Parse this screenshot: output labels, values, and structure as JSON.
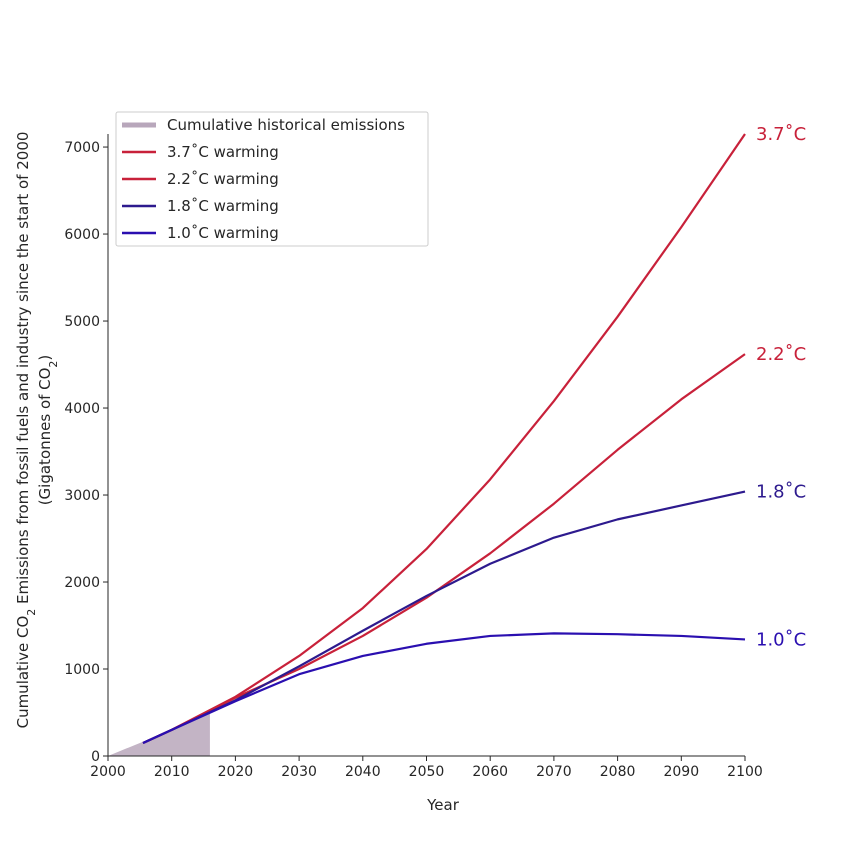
{
  "chart_data": {
    "type": "line",
    "xlabel": "Year",
    "ylabel_line1": "Cumulative CO",
    "ylabel_line1_sub": "2",
    "ylabel_line1_rest": " Emissions from fossil fuels and industry since the start of 2000",
    "ylabel_line2": "(Gigatonnes of CO",
    "ylabel_line2_sub": "2",
    "ylabel_line2_rest": ")",
    "xlim": [
      2000,
      2100
    ],
    "ylim": [
      0,
      7150
    ],
    "x_ticks": [
      2000,
      2010,
      2020,
      2030,
      2040,
      2050,
      2060,
      2070,
      2080,
      2090,
      2100
    ],
    "y_ticks": [
      0,
      1000,
      2000,
      3000,
      4000,
      5000,
      6000,
      7000
    ],
    "grid": false,
    "legend_position": "top-left",
    "historical": {
      "name": "Cumulative historical emissions",
      "color": "#b8a7bb",
      "x": [
        2000,
        2005,
        2010,
        2016
      ],
      "y": [
        0,
        150,
        300,
        500
      ]
    },
    "series": [
      {
        "name": "3.7˚C warming",
        "end_label": "3.7˚C",
        "color": "#c8213a",
        "x": [
          2005.5,
          2010,
          2020,
          2030,
          2040,
          2050,
          2060,
          2070,
          2080,
          2090,
          2100
        ],
        "y": [
          150,
          300,
          680,
          1150,
          1700,
          2380,
          3180,
          4080,
          5050,
          6080,
          7150
        ]
      },
      {
        "name": "2.2˚C warming",
        "end_label": "2.2˚C",
        "color": "#c8213a",
        "x": [
          2005.5,
          2010,
          2020,
          2030,
          2040,
          2050,
          2060,
          2070,
          2080,
          2090,
          2100
        ],
        "y": [
          150,
          300,
          670,
          1000,
          1380,
          1820,
          2330,
          2900,
          3520,
          4100,
          4620
        ]
      },
      {
        "name": "1.8˚C warming",
        "end_label": "1.8˚C",
        "color": "#2d1a8e",
        "x": [
          2005.5,
          2010,
          2020,
          2030,
          2040,
          2050,
          2060,
          2070,
          2080,
          2090,
          2100
        ],
        "y": [
          150,
          300,
          640,
          1030,
          1440,
          1840,
          2210,
          2510,
          2720,
          2880,
          3040
        ]
      },
      {
        "name": "1.0˚C warming",
        "end_label": "1.0˚C",
        "color": "#2a0fb0",
        "x": [
          2005.5,
          2010,
          2020,
          2030,
          2040,
          2050,
          2060,
          2070,
          2080,
          2090,
          2100
        ],
        "y": [
          150,
          300,
          630,
          940,
          1150,
          1290,
          1380,
          1410,
          1400,
          1380,
          1340
        ]
      }
    ]
  }
}
